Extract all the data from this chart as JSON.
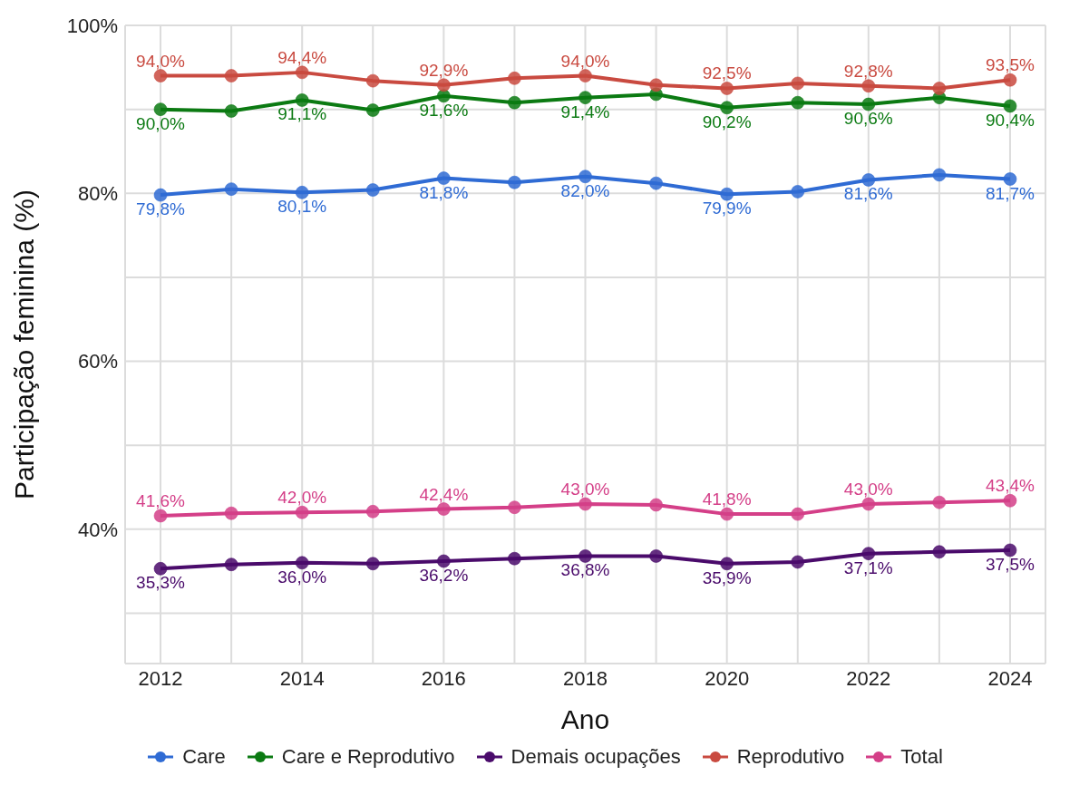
{
  "chart_data": {
    "type": "line",
    "xlabel": "Ano",
    "ylabel": "Participação feminina (%)",
    "x": [
      2012,
      2013,
      2014,
      2015,
      2016,
      2017,
      2018,
      2019,
      2020,
      2021,
      2022,
      2023,
      2024
    ],
    "xlim": [
      2011.5,
      2024.5
    ],
    "xticks": [
      2012,
      {
        "value": 2013,
        "label": null
      },
      2014,
      {
        "value": 2015,
        "label": null
      },
      2016,
      {
        "value": 2017,
        "label": null
      },
      2018,
      {
        "value": 2019,
        "label": null
      },
      2020,
      {
        "value": 2021,
        "label": null
      },
      2022,
      {
        "value": 2023,
        "label": null
      },
      2024
    ],
    "ylim": [
      24,
      100
    ],
    "yticks": [
      {
        "value": 30,
        "label": null
      },
      {
        "value": 40,
        "label": "40%"
      },
      {
        "value": 50,
        "label": null
      },
      {
        "value": 60,
        "label": "60%"
      },
      {
        "value": 70,
        "label": null
      },
      {
        "value": 80,
        "label": "80%"
      },
      {
        "value": 90,
        "label": null
      },
      {
        "value": 100,
        "label": "100%"
      }
    ],
    "grid": true,
    "legend": "bottom",
    "marker": "circle",
    "line_style": "solid",
    "series": [
      {
        "name": "Care",
        "color": "#2f6bd4",
        "values": [
          79.8,
          80.5,
          80.1,
          80.4,
          81.8,
          81.3,
          82.0,
          81.2,
          79.9,
          80.2,
          81.6,
          82.2,
          81.7
        ],
        "value_labels": [
          "79,8%",
          null,
          "80,1%",
          null,
          "81,8%",
          null,
          "82,0%",
          null,
          "79,9%",
          null,
          "81,6%",
          null,
          "81,7%"
        ]
      },
      {
        "name": "Care e Reprodutivo",
        "color": "#0b7a12",
        "values": [
          90.0,
          89.8,
          91.1,
          89.9,
          91.6,
          90.8,
          91.4,
          91.8,
          90.2,
          90.8,
          90.6,
          91.4,
          90.4
        ],
        "value_labels": [
          "90,0%",
          null,
          "91,1%",
          null,
          "91,6%",
          null,
          "91,4%",
          null,
          "90,2%",
          null,
          "90,6%",
          null,
          "90,4%"
        ]
      },
      {
        "name": "Demais ocupações",
        "color": "#4a0b6b",
        "values": [
          35.3,
          35.8,
          36.0,
          35.9,
          36.2,
          36.5,
          36.8,
          36.8,
          35.9,
          36.1,
          37.1,
          37.3,
          37.5
        ],
        "value_labels": [
          "35,3%",
          null,
          "36,0%",
          null,
          "36,2%",
          null,
          "36,8%",
          null,
          "35,9%",
          null,
          "37,1%",
          null,
          "37,5%"
        ]
      },
      {
        "name": "Reprodutivo",
        "color": "#c94a40",
        "values": [
          94.0,
          94.0,
          94.4,
          93.4,
          92.9,
          93.7,
          94.0,
          92.9,
          92.5,
          93.1,
          92.8,
          92.5,
          93.5
        ],
        "value_labels": [
          "94,0%",
          null,
          "94,4%",
          null,
          "92,9%",
          null,
          "94,0%",
          null,
          "92,5%",
          null,
          "92,8%",
          null,
          "93,5%"
        ]
      },
      {
        "name": "Total",
        "color": "#d43f88",
        "values": [
          41.6,
          41.9,
          42.0,
          42.1,
          42.4,
          42.6,
          43.0,
          42.9,
          41.8,
          41.8,
          43.0,
          43.2,
          43.4
        ],
        "value_labels": [
          "41,6%",
          null,
          "42,0%",
          null,
          "42,4%",
          null,
          "43,0%",
          null,
          "41,8%",
          null,
          "43,0%",
          null,
          "43,4%"
        ]
      }
    ]
  }
}
